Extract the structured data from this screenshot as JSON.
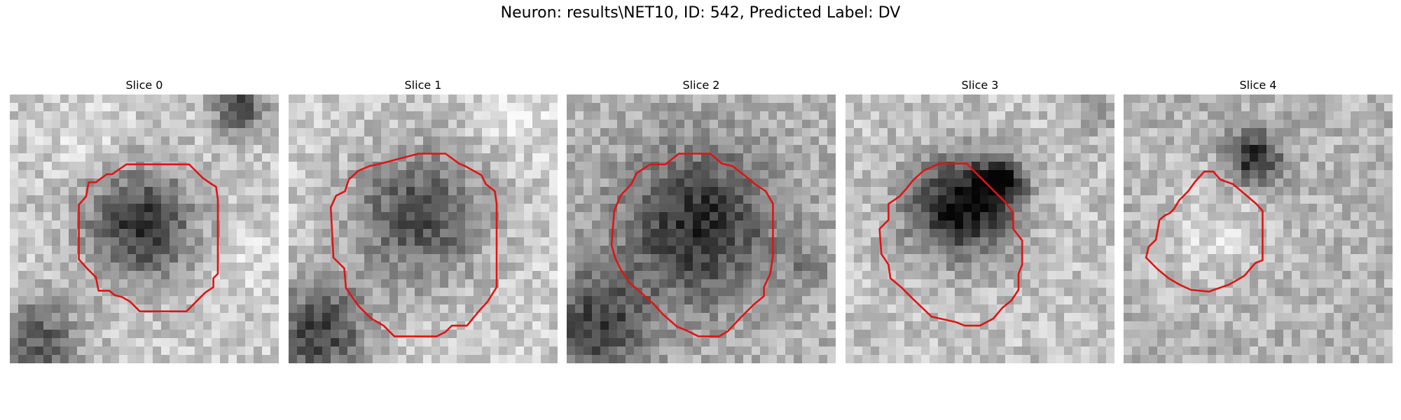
{
  "title": "Neuron: results\\NET10, ID: 542, Predicted Label: DV",
  "contour_color": "#e01414",
  "slices": [
    {
      "label": "Slice 0"
    },
    {
      "label": "Slice 1"
    },
    {
      "label": "Slice 2"
    },
    {
      "label": "Slice 3"
    },
    {
      "label": "Slice 4"
    }
  ]
}
